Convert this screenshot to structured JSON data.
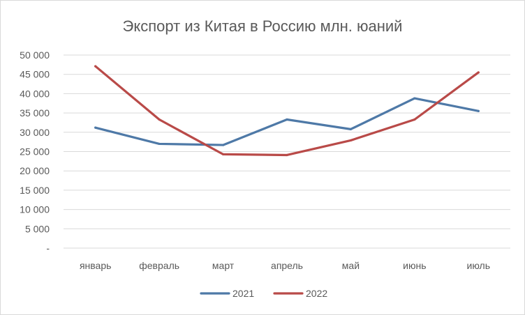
{
  "chart_data": {
    "type": "line",
    "title": "Экспорт из Китая в Россию млн. юаний",
    "xlabel": "",
    "ylabel": "",
    "categories": [
      "январь",
      "февраль",
      "март",
      "апрель",
      "май",
      "июнь",
      "июль"
    ],
    "series": [
      {
        "name": "2021",
        "color": "#4e79a7",
        "values": [
          31200,
          27000,
          26700,
          33300,
          30800,
          38800,
          35500
        ]
      },
      {
        "name": "2022",
        "color": "#b94a48",
        "values": [
          47100,
          33300,
          24300,
          24100,
          27900,
          33300,
          45500
        ]
      }
    ],
    "ylim": [
      0,
      50000
    ],
    "yticks": [
      {
        "value": 0,
        "label": "-"
      },
      {
        "value": 5000,
        "label": "5 000"
      },
      {
        "value": 10000,
        "label": "10 000"
      },
      {
        "value": 15000,
        "label": "15 000"
      },
      {
        "value": 20000,
        "label": "20 000"
      },
      {
        "value": 25000,
        "label": "25 000"
      },
      {
        "value": 30000,
        "label": "30 000"
      },
      {
        "value": 35000,
        "label": "35 000"
      },
      {
        "value": 40000,
        "label": "40 000"
      },
      {
        "value": 45000,
        "label": "45 000"
      },
      {
        "value": 50000,
        "label": "50 000"
      }
    ],
    "grid": true,
    "legend_position": "bottom",
    "gridline_color": "#d9d9d9"
  }
}
